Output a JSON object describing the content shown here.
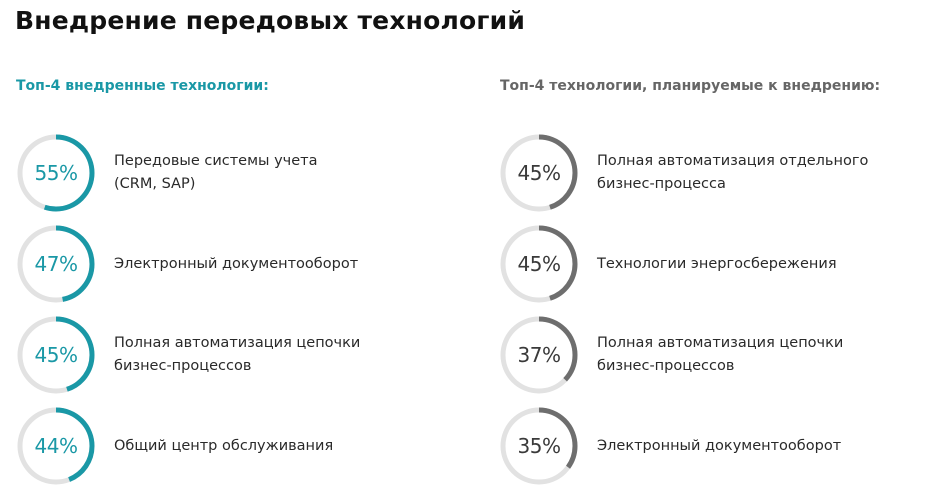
{
  "title": "Внедрение передовых технологий",
  "colors": {
    "accent_left": "#1a98a6",
    "accent_right": "#6e6e6e",
    "track": "#e2e2e2",
    "heading_right": "#666666"
  },
  "chart_data": [
    {
      "type": "pie",
      "variant": "donut-progress",
      "title": "Топ-4 внедренные технологии:",
      "categories": [
        "Передовые системы учета (CRM, SAP)",
        "Электронный документооборот",
        "Полная автоматизация цепочки бизнес-процессов",
        "Общий центр обслуживания"
      ],
      "values": [
        55,
        47,
        45,
        44
      ],
      "unit": "%",
      "items": [
        {
          "value": 55,
          "label": "55%",
          "text": "Передовые системы учета\n(CRM, SAP)"
        },
        {
          "value": 47,
          "label": "47%",
          "text": "Электронный документооборот"
        },
        {
          "value": 45,
          "label": "45%",
          "text": "Полная автоматизация цепочки\nбизнес-процессов"
        },
        {
          "value": 44,
          "label": "44%",
          "text": "Общий центр обслуживания"
        }
      ]
    },
    {
      "type": "pie",
      "variant": "donut-progress",
      "title": "Топ-4 технологии, планируемые к внедрению:",
      "categories": [
        "Полная автоматизация отдельного бизнес-процесса",
        "Технологии энергосбережения",
        "Полная автоматизация цепочки бизнес-процессов",
        "Электронный документооборот"
      ],
      "values": [
        45,
        45,
        37,
        35
      ],
      "unit": "%",
      "items": [
        {
          "value": 45,
          "label": "45%",
          "text": "Полная автоматизация отдельного\nбизнес-процесса"
        },
        {
          "value": 45,
          "label": "45%",
          "text": "Технологии энергосбережения"
        },
        {
          "value": 37,
          "label": "37%",
          "text": "Полная автоматизация цепочки\nбизнес-процессов"
        },
        {
          "value": 35,
          "label": "35%",
          "text": "Электронный документооборот"
        }
      ]
    }
  ]
}
